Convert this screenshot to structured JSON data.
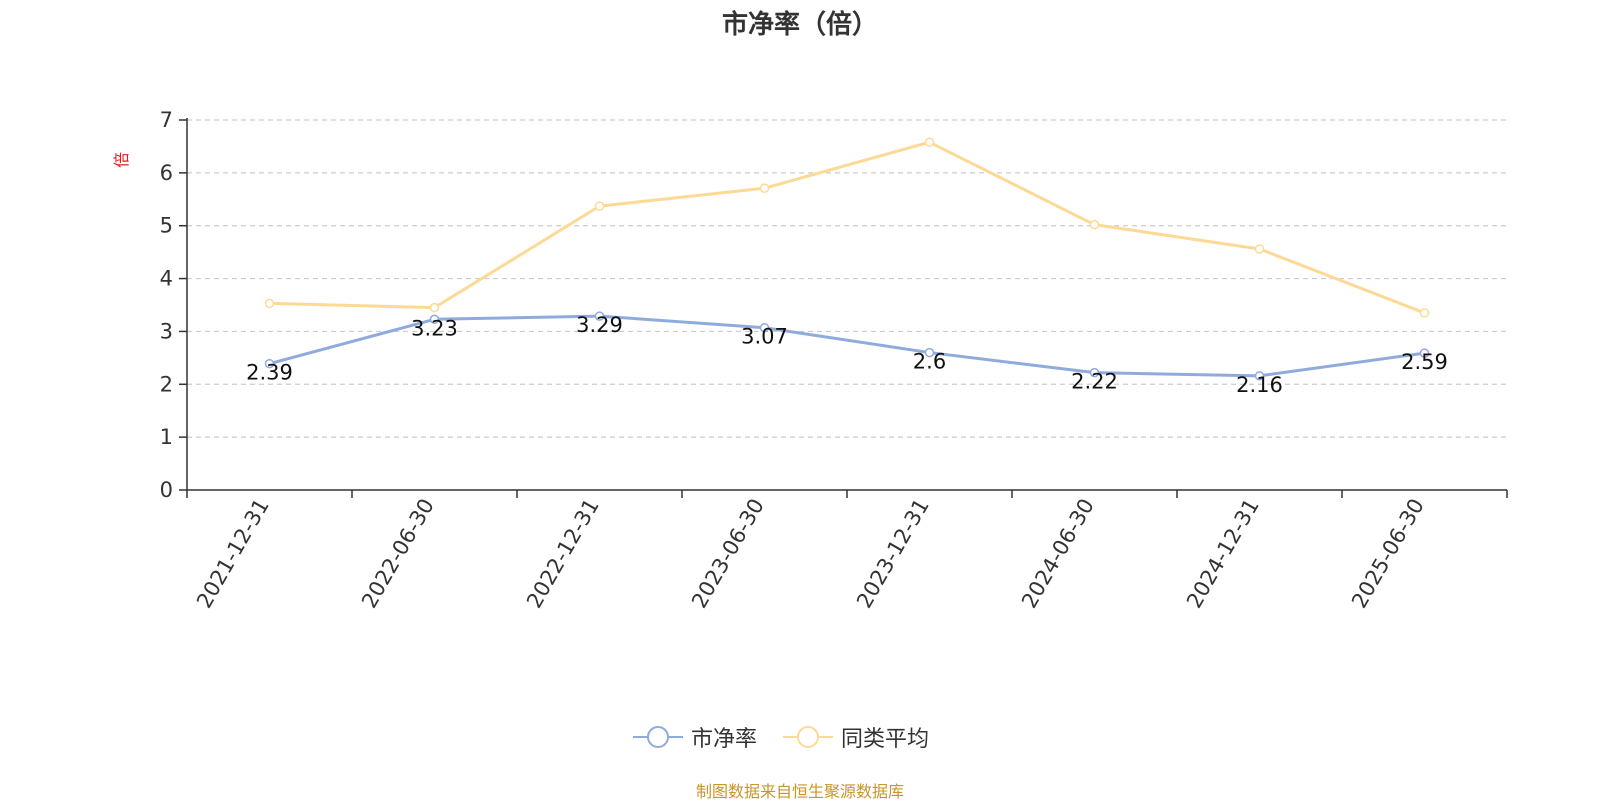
{
  "title": "市净率（倍）",
  "footer": "制图数据来自恒生聚源数据库",
  "colors": {
    "series_pb": "#8faadc",
    "series_avg": "#fcda96",
    "axis": "#333333",
    "grid": "#cccccc",
    "unit_label": "#e02020"
  },
  "legend": {
    "items": [
      {
        "label": "市净率",
        "color": "#8faadc"
      },
      {
        "label": "同类平均",
        "color": "#fcda96"
      }
    ]
  },
  "chart_data": {
    "type": "line",
    "title": "市净率（倍）",
    "ylabel": "倍",
    "xlabel": "",
    "categories": [
      "2021-12-31",
      "2022-06-30",
      "2022-12-31",
      "2023-06-30",
      "2023-12-31",
      "2024-06-30",
      "2024-12-31",
      "2025-06-30"
    ],
    "ylim": [
      0,
      7
    ],
    "yticks": [
      0,
      1,
      2,
      3,
      4,
      5,
      6,
      7
    ],
    "grid": true,
    "legend_position": "bottom-center",
    "series": [
      {
        "name": "市净率",
        "values": [
          2.39,
          3.23,
          3.29,
          3.07,
          2.6,
          2.22,
          2.16,
          2.59
        ],
        "labels": [
          "2.39",
          "3.23",
          "3.29",
          "3.07",
          "2.6",
          "2.22",
          "2.16",
          "2.59"
        ],
        "show_labels": true
      },
      {
        "name": "同类平均",
        "values": [
          3.53,
          3.45,
          5.37,
          5.71,
          6.58,
          5.02,
          4.56,
          3.35
        ],
        "show_labels": false
      }
    ]
  }
}
